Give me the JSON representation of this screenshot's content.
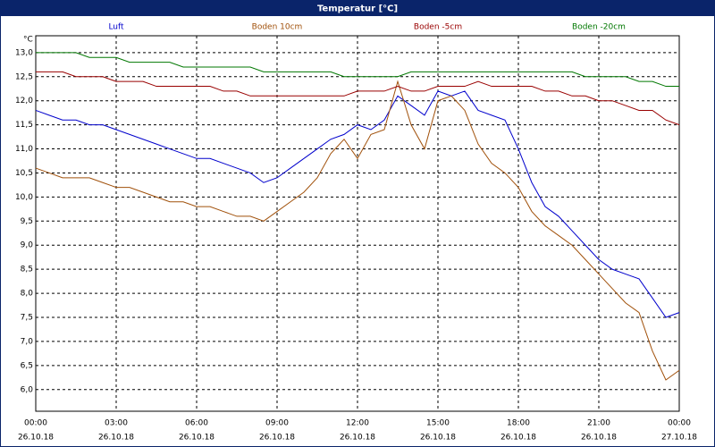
{
  "chart_data": {
    "type": "line",
    "title": "Temperatur [°C]",
    "y_label": "°C",
    "x": [
      0,
      0.5,
      1,
      1.5,
      2,
      2.5,
      3,
      3.5,
      4,
      4.5,
      5,
      5.5,
      6,
      6.5,
      7,
      7.5,
      8,
      8.5,
      9,
      9.5,
      10,
      10.5,
      11,
      11.5,
      12,
      12.5,
      13,
      13.5,
      14,
      14.5,
      15,
      15.5,
      16,
      16.5,
      17,
      17.5,
      18,
      18.5,
      19,
      19.5,
      20,
      20.5,
      21,
      21.5,
      22,
      22.5,
      23,
      23.5,
      24
    ],
    "series": [
      {
        "name": "Luft",
        "color": "#0000cc",
        "values": [
          11.8,
          11.7,
          11.6,
          11.6,
          11.5,
          11.5,
          11.4,
          11.3,
          11.2,
          11.1,
          11.0,
          10.9,
          10.8,
          10.8,
          10.7,
          10.6,
          10.5,
          10.3,
          10.4,
          10.6,
          10.8,
          11.0,
          11.2,
          11.3,
          11.5,
          11.4,
          11.6,
          12.1,
          11.9,
          11.7,
          12.2,
          12.1,
          12.2,
          11.8,
          11.7,
          11.6,
          11.0,
          10.3,
          9.8,
          9.6,
          9.3,
          9.0,
          8.7,
          8.5,
          8.4,
          8.3,
          7.9,
          7.5,
          7.6
        ]
      },
      {
        "name": "Boden 10cm",
        "color": "#a0500a",
        "values": [
          10.6,
          10.5,
          10.4,
          10.4,
          10.4,
          10.3,
          10.2,
          10.2,
          10.1,
          10.0,
          9.9,
          9.9,
          9.8,
          9.8,
          9.7,
          9.6,
          9.6,
          9.5,
          9.7,
          9.9,
          10.1,
          10.4,
          10.9,
          11.2,
          10.8,
          11.3,
          11.4,
          12.4,
          11.5,
          11.0,
          12.0,
          12.1,
          11.8,
          11.1,
          10.7,
          10.5,
          10.2,
          9.7,
          9.4,
          9.2,
          9.0,
          8.7,
          8.4,
          8.1,
          7.8,
          7.6,
          6.8,
          6.2,
          6.4
        ]
      },
      {
        "name": "Boden -5cm",
        "color": "#990000",
        "values": [
          12.6,
          12.6,
          12.6,
          12.5,
          12.5,
          12.5,
          12.4,
          12.4,
          12.4,
          12.3,
          12.3,
          12.3,
          12.3,
          12.3,
          12.2,
          12.2,
          12.1,
          12.1,
          12.1,
          12.1,
          12.1,
          12.1,
          12.1,
          12.1,
          12.2,
          12.2,
          12.2,
          12.3,
          12.2,
          12.2,
          12.3,
          12.3,
          12.3,
          12.4,
          12.3,
          12.3,
          12.3,
          12.3,
          12.2,
          12.2,
          12.1,
          12.1,
          12.0,
          12.0,
          11.9,
          11.8,
          11.8,
          11.6,
          11.5
        ]
      },
      {
        "name": "Boden -20cm",
        "color": "#007700",
        "values": [
          13.0,
          13.0,
          13.0,
          13.0,
          12.9,
          12.9,
          12.9,
          12.8,
          12.8,
          12.8,
          12.8,
          12.7,
          12.7,
          12.7,
          12.7,
          12.7,
          12.7,
          12.6,
          12.6,
          12.6,
          12.6,
          12.6,
          12.6,
          12.5,
          12.5,
          12.5,
          12.5,
          12.5,
          12.6,
          12.6,
          12.6,
          12.6,
          12.6,
          12.6,
          12.6,
          12.6,
          12.6,
          12.6,
          12.6,
          12.6,
          12.6,
          12.5,
          12.5,
          12.5,
          12.5,
          12.4,
          12.4,
          12.3,
          12.3
        ]
      }
    ],
    "xlim": [
      0,
      24
    ],
    "xticks": [
      {
        "value": 0,
        "label": [
          "00:00",
          "26.10.18"
        ]
      },
      {
        "value": 3,
        "label": [
          "03:00",
          "26.10.18"
        ]
      },
      {
        "value": 6,
        "label": [
          "06:00",
          "26.10.18"
        ]
      },
      {
        "value": 9,
        "label": [
          "09:00",
          "26.10.18"
        ]
      },
      {
        "value": 12,
        "label": [
          "12:00",
          "26.10.18"
        ]
      },
      {
        "value": 15,
        "label": [
          "15:00",
          "26.10.18"
        ]
      },
      {
        "value": 18,
        "label": [
          "18:00",
          "26.10.18"
        ]
      },
      {
        "value": 21,
        "label": [
          "21:00",
          "26.10.18"
        ]
      },
      {
        "value": 24,
        "label": [
          "00:00",
          "27.10.18"
        ]
      }
    ],
    "ylim": [
      5.55,
      13.35
    ],
    "yticks": [
      {
        "value": 6,
        "label": "6,0"
      },
      {
        "value": 6.5,
        "label": "6,5"
      },
      {
        "value": 7,
        "label": "7,0"
      },
      {
        "value": 7.5,
        "label": "7,5"
      },
      {
        "value": 8,
        "label": "8,0"
      },
      {
        "value": 8.5,
        "label": "8,5"
      },
      {
        "value": 9,
        "label": "9,0"
      },
      {
        "value": 9.5,
        "label": "9,5"
      },
      {
        "value": 10,
        "label": "10,0"
      },
      {
        "value": 10.5,
        "label": "10,5"
      },
      {
        "value": 11,
        "label": "11,0"
      },
      {
        "value": 11.5,
        "label": "11,5"
      },
      {
        "value": 12,
        "label": "12,0"
      },
      {
        "value": 12.5,
        "label": "12,5"
      },
      {
        "value": 13,
        "label": "13,0"
      }
    ],
    "grid": true
  }
}
